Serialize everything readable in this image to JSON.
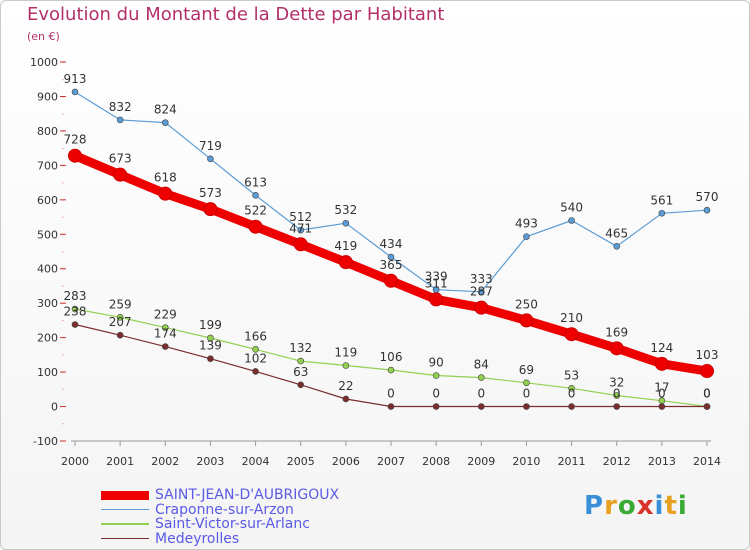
{
  "chart_title": "Evolution du Montant de la Dette par Habitant",
  "chart_unit": "(en €)",
  "logo_text": "Proxiti",
  "chart_data": {
    "type": "line",
    "title": "Evolution du Montant de la Dette par Habitant",
    "subtitle": "(en €)",
    "xlabel": "",
    "ylabel": "",
    "x": [
      2000,
      2001,
      2002,
      2003,
      2004,
      2005,
      2006,
      2007,
      2008,
      2009,
      2010,
      2011,
      2012,
      2013,
      2014
    ],
    "ylim": [
      -100,
      1000
    ],
    "yticks": [
      -100,
      0,
      100,
      200,
      300,
      400,
      500,
      600,
      700,
      800,
      900,
      1000
    ],
    "grid": false,
    "legend_position": "bottom-left",
    "series": [
      {
        "name": "SAINT-JEAN-D'AUBRIGOUX",
        "color": "#ee0000",
        "emphasis": true,
        "values": [
          728,
          673,
          618,
          573,
          522,
          471,
          419,
          365,
          311,
          287,
          250,
          210,
          169,
          124,
          103
        ]
      },
      {
        "name": "Craponne-sur-Arzon",
        "color": "#5b9bd5",
        "emphasis": false,
        "values": [
          913,
          832,
          824,
          719,
          613,
          512,
          532,
          434,
          339,
          333,
          493,
          540,
          465,
          561,
          570
        ]
      },
      {
        "name": "Saint-Victor-sur-Arlanc",
        "color": "#92d050",
        "emphasis": false,
        "values": [
          283,
          259,
          229,
          199,
          166,
          132,
          119,
          106,
          90,
          84,
          69,
          53,
          32,
          17,
          0
        ]
      },
      {
        "name": "Medeyrolles",
        "color": "#7b2c2c",
        "emphasis": false,
        "values": [
          238,
          207,
          174,
          139,
          102,
          63,
          22,
          0,
          0,
          0,
          0,
          0,
          0,
          0,
          0
        ]
      }
    ]
  }
}
